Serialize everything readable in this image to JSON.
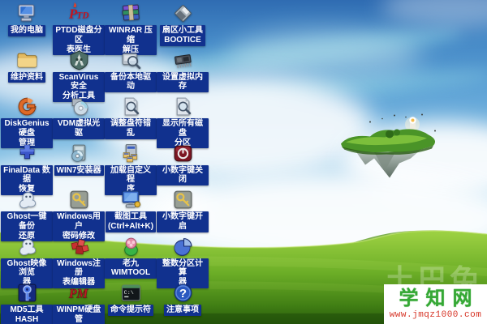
{
  "desktop": {
    "label_bg": "#11318e",
    "label_color": "#ffffff",
    "icons": [
      {
        "label": "我的电脑",
        "icon": "my-computer-icon"
      },
      {
        "label": "PTDD磁盘分区\n表医生",
        "icon": "ptdd-logo-icon"
      },
      {
        "label": "WINRAR 压缩\n解压",
        "icon": "winrar-icon"
      },
      {
        "label": "扇区小工具\nBOOTICE",
        "icon": "floppy-disk-icon"
      },
      {
        "label": "维护资料",
        "icon": "folder-icon"
      },
      {
        "label": "ScanVirus安全\n分析工具",
        "icon": "antivirus-shield-icon"
      },
      {
        "label": "备份本地驱动",
        "icon": "drive-search-icon"
      },
      {
        "label": "设置虚拟内存",
        "icon": "ram-chip-icon"
      },
      {
        "label": "DiskGenius硬盘\n管理",
        "icon": "diskgenius-icon"
      },
      {
        "label": "VDM虚拟光驱",
        "icon": "virtual-disc-icon"
      },
      {
        "label": "调整盘符错乱",
        "icon": "doc-magnifier-icon"
      },
      {
        "label": "显示所有磁盘\n分区",
        "icon": "doc-magnifier-icon"
      },
      {
        "label": "FinalData 数据\n恢复",
        "icon": "puzzle-icon"
      },
      {
        "label": "WIN7安装器",
        "icon": "installer-disc-icon"
      },
      {
        "label": "加载自定义程\n序",
        "icon": "program-windows-icon"
      },
      {
        "label": "小数字键关闭",
        "icon": "numlock-off-icon"
      },
      {
        "label": "Ghost一键备份\n还原",
        "icon": "ghost-icon"
      },
      {
        "label": "Windows用户\n密码修改",
        "icon": "key-icon"
      },
      {
        "label": "截图工具\n(Ctrl+Alt+K)",
        "icon": "screenshot-monitor-icon"
      },
      {
        "label": "小数字键开启",
        "icon": "key-icon"
      },
      {
        "label": "Ghost映像浏览\n器",
        "icon": "ghost-icon"
      },
      {
        "label": "Windows注册\n表编辑器",
        "icon": "registry-blocks-icon"
      },
      {
        "label": "老九WIMTOOL",
        "icon": "wimtool-icon"
      },
      {
        "label": "整数分区计算\n器",
        "icon": "pie-chart-icon"
      },
      {
        "label": "MD5工具HASH",
        "icon": "md5-key-icon"
      },
      {
        "label": "WINPM硬盘管\n理",
        "icon": "pm-logo-icon"
      },
      {
        "label": "命令提示符",
        "icon": "command-prompt-icon"
      },
      {
        "label": "注意事项",
        "icon": "question-mark-icon"
      }
    ]
  },
  "watermark": {
    "faint_text": "土巴兔",
    "site_name": "学知网",
    "site_url": "www.jmqz1000.com",
    "name_color": "#35a835",
    "url_color": "#d63426"
  }
}
